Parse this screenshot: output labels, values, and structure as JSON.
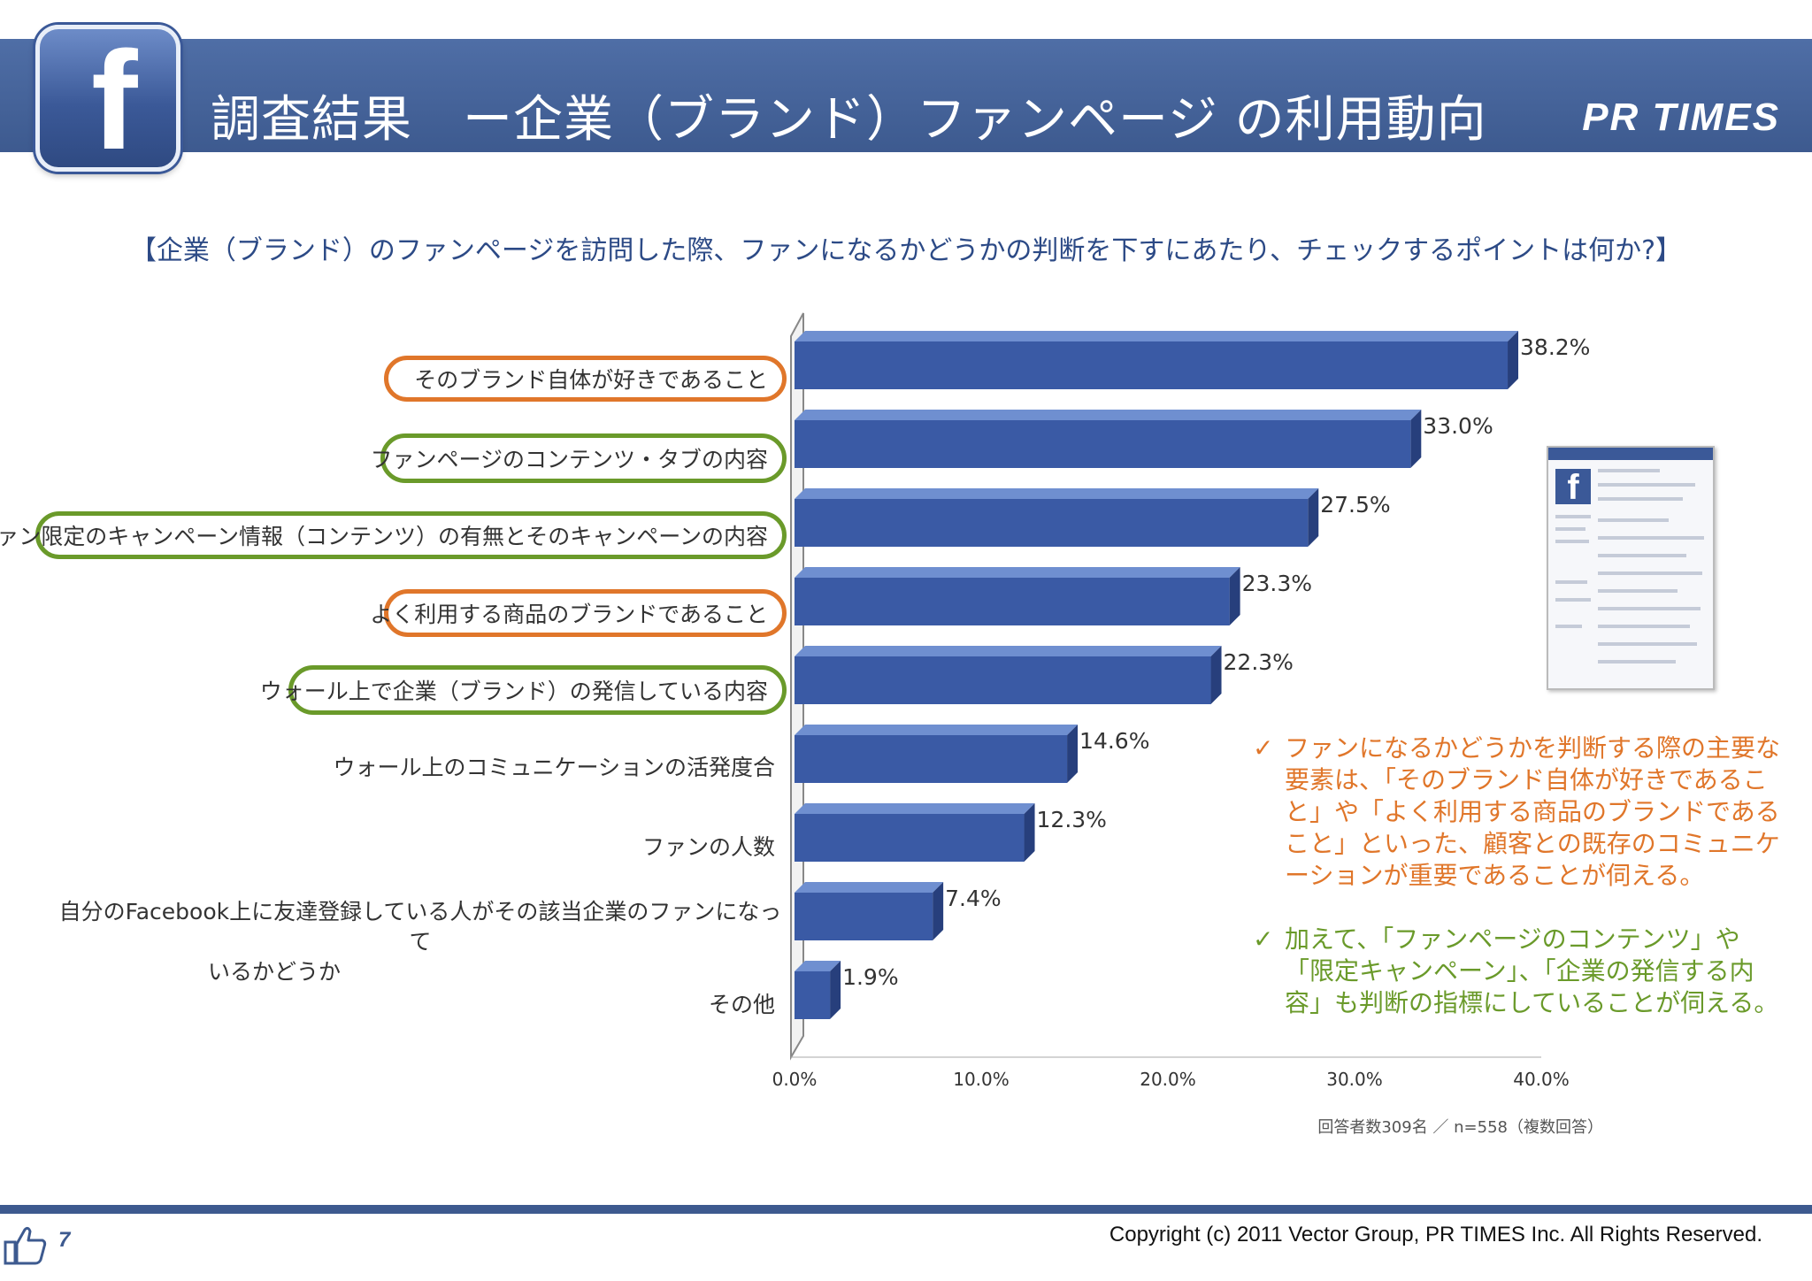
{
  "header": {
    "title": "調査結果　ー企業（ブランド）ファンページ の利用動向",
    "brand": "PR TIMES",
    "logo_icon": "facebook-f-icon"
  },
  "question": "【企業（ブランド）のファンページを訪問した際、ファンになるかどうかの判断を下すにあたり、チェックするポイントは何か?】",
  "categories_display": {
    "c0": "そのブランド自体が好きであること",
    "c1": "ファンページのコンテンツ・タブの内容",
    "c2": "ファン限定のキャンペーン情報（コンテンツ）の有無とそのキャンペーンの内容",
    "c3": "よく利用する商品のブランドであること",
    "c4": "ウォール上で企業（ブランド）の発信している内容",
    "c5": "ウォール上のコミュニケーションの活発度合",
    "c6": "ファンの人数",
    "c7_line1": "自分のFacebook上に友達登録している人がその該当企業のファンになって",
    "c7_line2": "いるかどうか",
    "c8": "その他"
  },
  "chart_data": {
    "type": "bar",
    "orientation": "horizontal",
    "title": "【企業（ブランド）のファンページを訪問した際、ファンになるかどうかの判断を下すにあたり、チェックするポイントは何か?】",
    "categories": [
      "そのブランド自体が好きであること",
      "ファンページのコンテンツ・タブの内容",
      "ファン限定のキャンペーン情報（コンテンツ）の有無とそのキャンペーンの内容",
      "よく利用する商品のブランドであること",
      "ウォール上で企業（ブランド）の発信している内容",
      "ウォール上のコミュニケーションの活発度合",
      "ファンの人数",
      "自分のFacebook上に友達登録している人がその該当企業のファンになっているかどうか",
      "その他"
    ],
    "values": [
      38.2,
      33.0,
      27.5,
      23.3,
      22.3,
      14.6,
      12.3,
      7.4,
      1.9
    ],
    "value_labels": [
      "38.2%",
      "33.0%",
      "27.5%",
      "23.3%",
      "22.3%",
      "14.6%",
      "12.3%",
      "7.4%",
      "1.9%"
    ],
    "xlim": [
      0,
      40
    ],
    "ticks": [
      "0.0%",
      "10.0%",
      "20.0%",
      "30.0%",
      "40.0%"
    ],
    "tick_values": [
      0,
      10,
      20,
      30,
      40
    ],
    "bar_color": "#3a5aa5",
    "bar_side_color": "#273f7c",
    "bar_top_color": "#6f8fd0",
    "highlight": {
      "orange": [
        0,
        3
      ],
      "green": [
        1,
        2,
        4
      ]
    },
    "orange_color": "#e0762a",
    "green_color": "#6a9a2a",
    "grid": false,
    "legend": "none"
  },
  "note": "回答者数309名 ／ n=558（複数回答）",
  "comments": [
    {
      "check": "✓",
      "text": "ファンになるかどうかを判断する際の主要な要素は、「そのブランド自体が好きであること」や「よく利用する商品のブランドであること」といった、顧客との既存のコミュニケーションが重要であることが伺える。"
    },
    {
      "check": "✓",
      "text": "加えて、「ファンページのコンテンツ」や「限定キャンペーン」、「企業の発信する内容」も判断の指標にしていることが伺える。"
    }
  ],
  "footer": {
    "copyright": "Copyright (c) 2011 Vector Group, PR TIMES Inc. All Rights Reserved.",
    "page_number": "7",
    "like_icon": "thumbs-up-icon"
  }
}
